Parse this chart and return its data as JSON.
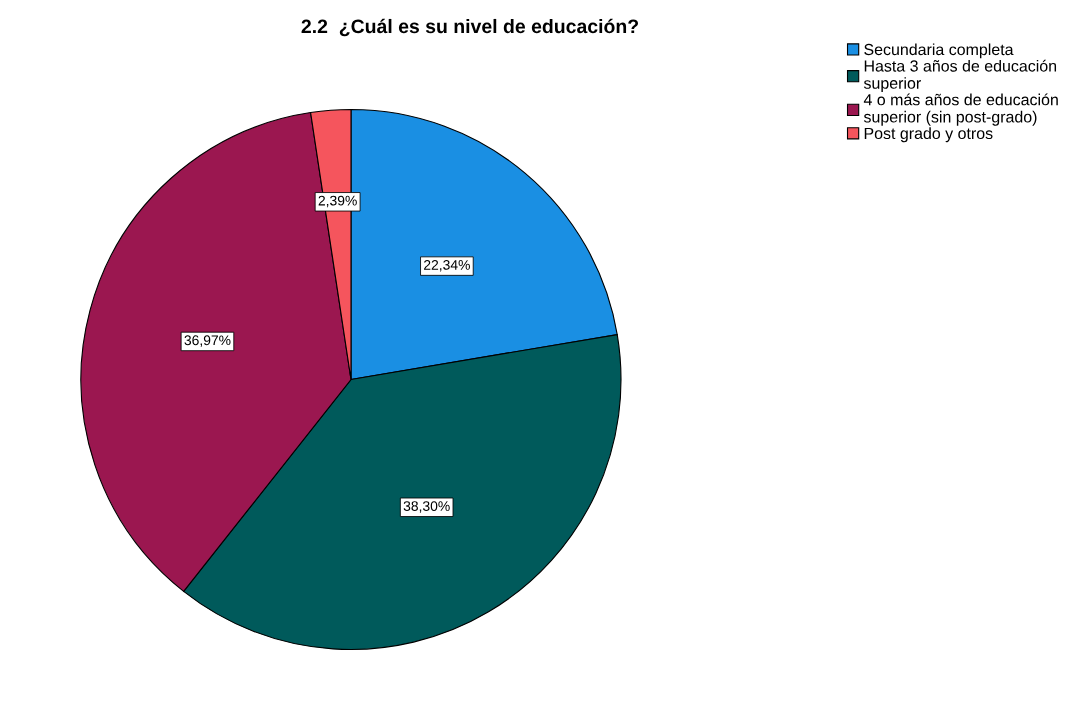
{
  "chart_data": {
    "type": "pie",
    "title": "2.2  ¿Cuál es su nivel de educación?",
    "categories": [
      "Secundaria completa",
      "Hasta 3 años de educación\nsuperior",
      "4 o más años de educación\nsuperior (sin post-grado)",
      "Post grado y otros"
    ],
    "values": [
      22.34,
      38.3,
      36.97,
      2.39
    ],
    "value_labels": [
      "22,34%",
      "38,30%",
      "36,97%",
      "2,39%"
    ],
    "colors": [
      "#1a8fe3",
      "#005a5b",
      "#9b1750",
      "#f5555d"
    ],
    "legend": "top right"
  }
}
